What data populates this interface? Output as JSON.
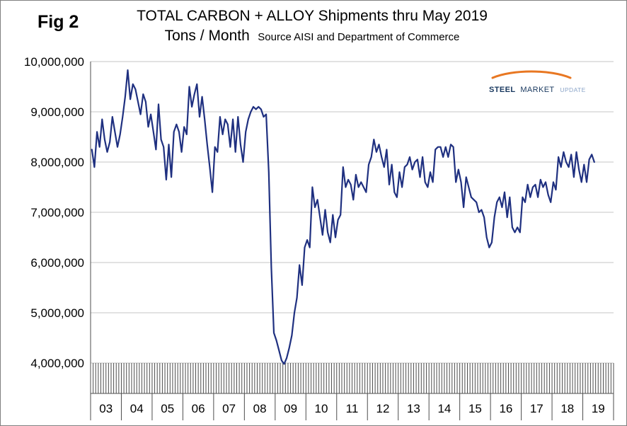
{
  "figure_label": "Fig 2",
  "title": "TOTAL CARBON + ALLOY Shipments thru May 2019",
  "subtitle": "Tons / Month",
  "source": "Source AISI and Department of Commerce",
  "logo": {
    "steel": "STEEL",
    "market": "MARKET",
    "update": "UPDATE",
    "swoosh_color": "#e87722",
    "text_color": "#17375e"
  },
  "chart_data": {
    "type": "line",
    "title": "TOTAL CARBON + ALLOY Shipments thru May 2019",
    "ylabel": "Tons / Month",
    "ylim": [
      4000000,
      10000000
    ],
    "ytick_step": 1000000,
    "ytick_labels": [
      "4,000,000",
      "5,000,000",
      "6,000,000",
      "7,000,000",
      "8,000,000",
      "9,000,000",
      "10,000,000"
    ],
    "x_year_labels": [
      "03",
      "04",
      "05",
      "06",
      "07",
      "08",
      "09",
      "10",
      "11",
      "12",
      "13",
      "14",
      "15",
      "16",
      "17",
      "18",
      "19"
    ],
    "start_month": "2003-01",
    "end_month": "2019-05",
    "grid": true,
    "legend": "none",
    "line_color": "#1f3080",
    "values_tons": [
      8250000,
      7900000,
      8600000,
      8300000,
      8850000,
      8450000,
      8200000,
      8400000,
      8900000,
      8600000,
      8300000,
      8550000,
      8900000,
      9300000,
      9830000,
      9250000,
      9550000,
      9450000,
      9200000,
      8950000,
      9350000,
      9200000,
      8700000,
      8950000,
      8600000,
      8250000,
      9150000,
      8450000,
      8300000,
      7650000,
      8350000,
      7700000,
      8600000,
      8750000,
      8600000,
      8200000,
      8700000,
      8550000,
      9500000,
      9100000,
      9350000,
      9550000,
      8900000,
      9300000,
      8850000,
      8350000,
      7900000,
      7400000,
      8300000,
      8200000,
      8900000,
      8550000,
      8850000,
      8750000,
      8300000,
      8850000,
      8200000,
      8900000,
      8350000,
      8000000,
      8600000,
      8850000,
      9000000,
      9100000,
      9050000,
      9100000,
      9050000,
      8900000,
      8950000,
      7800000,
      5900000,
      4600000,
      4450000,
      4250000,
      4050000,
      3980000,
      4100000,
      4300000,
      4550000,
      5000000,
      5300000,
      5950000,
      5550000,
      6300000,
      6450000,
      6300000,
      7500000,
      7100000,
      7250000,
      6900000,
      6550000,
      7050000,
      6600000,
      6400000,
      6950000,
      6500000,
      6850000,
      6950000,
      7900000,
      7500000,
      7650000,
      7550000,
      7250000,
      7750000,
      7500000,
      7600000,
      7500000,
      7400000,
      7950000,
      8100000,
      8450000,
      8200000,
      8350000,
      8100000,
      7900000,
      8250000,
      7550000,
      7950000,
      7400000,
      7300000,
      7800000,
      7500000,
      7900000,
      7950000,
      8100000,
      7850000,
      8000000,
      8050000,
      7700000,
      8100000,
      7600000,
      7500000,
      7800000,
      7600000,
      8250000,
      8300000,
      8300000,
      8100000,
      8300000,
      8100000,
      8350000,
      8300000,
      7600000,
      7850000,
      7600000,
      7100000,
      7700000,
      7500000,
      7300000,
      7250000,
      7200000,
      7000000,
      7050000,
      6900000,
      6500000,
      6300000,
      6400000,
      6900000,
      7200000,
      7300000,
      7100000,
      7400000,
      6900000,
      7300000,
      6700000,
      6600000,
      6700000,
      6600000,
      7300000,
      7200000,
      7550000,
      7300000,
      7500000,
      7550000,
      7300000,
      7650000,
      7500000,
      7600000,
      7350000,
      7200000,
      7600000,
      7450000,
      8100000,
      7900000,
      8200000,
      8000000,
      7900000,
      8150000,
      7700000,
      8200000,
      7850000,
      7600000,
      7950000,
      7600000,
      8050000,
      8150000,
      8000000
    ]
  }
}
